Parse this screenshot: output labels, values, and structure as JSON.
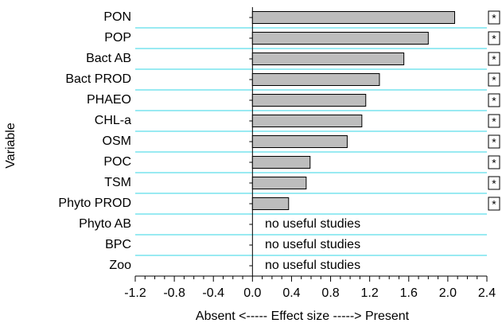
{
  "chart_data": {
    "type": "bar",
    "orientation": "horizontal",
    "xlabel": "Absent <----- Effect size -----> Present",
    "ylabel": "Variable",
    "categories": [
      "PON",
      "POP",
      "Bact AB",
      "Bact PROD",
      "PHAEO",
      "CHL-a",
      "OSM",
      "POC",
      "TSM",
      "Phyto PROD",
      "Phyto AB",
      "BPC",
      "Zoo"
    ],
    "values": [
      2.07,
      1.8,
      1.55,
      1.3,
      1.16,
      1.12,
      0.97,
      0.59,
      0.55,
      0.37,
      null,
      null,
      null
    ],
    "significance": [
      "*",
      "*",
      "*",
      "*",
      "*",
      "*",
      "*",
      "*",
      "*",
      "*",
      null,
      null,
      null
    ],
    "notes": [
      null,
      null,
      null,
      null,
      null,
      null,
      null,
      null,
      null,
      null,
      "no useful studies",
      "no useful studies",
      "no useful studies"
    ],
    "color": "#bdbdbd",
    "separator_color": "#33d6e6",
    "xlim": [
      -1.2,
      2.4
    ],
    "xticks": [
      -1.2,
      -0.8,
      -0.4,
      {
        "value": 0,
        "label": "0.0"
      },
      0.4,
      0.8,
      1.2,
      1.6,
      {
        "value": 2,
        "label": "2.0"
      },
      2.4
    ]
  }
}
